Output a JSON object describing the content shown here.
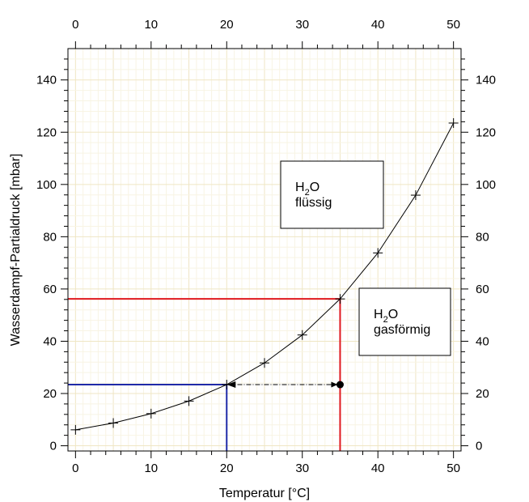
{
  "chart_data": {
    "type": "line",
    "xlabel": "Temperatur [°C]",
    "ylabel": "Wasserdampf-Partialdruck [mbar]",
    "xlim": [
      -1,
      51
    ],
    "ylim": [
      -2,
      152
    ],
    "x_ticks": [
      0,
      10,
      20,
      30,
      40,
      50
    ],
    "y_ticks": [
      0,
      20,
      40,
      60,
      80,
      100,
      120,
      140
    ],
    "grid": true,
    "series": [
      {
        "x": [
          0,
          5,
          10,
          15,
          20,
          25,
          30,
          35,
          40,
          45,
          50
        ],
        "values": [
          6.1,
          8.7,
          12.3,
          17.1,
          23.4,
          31.7,
          42.4,
          56.2,
          73.8,
          95.9,
          123.5
        ],
        "color": "#000000",
        "marker": "plus"
      }
    ],
    "annotations": {
      "liquid_box": {
        "main": "H",
        "sub": "2",
        "rest": "O",
        "line2": "flüssig"
      },
      "gas_box": {
        "main": "H",
        "sub": "2",
        "rest": "O",
        "line2": "gasförmig"
      }
    },
    "reference_lines": {
      "red": {
        "x": 35,
        "y": 56.2,
        "color": "#e0191f"
      },
      "blue": {
        "x": 20,
        "y": 23.4,
        "color": "#1f2aa8"
      },
      "arrow": {
        "from_x": 35,
        "to_x": 20,
        "y": 23.4,
        "color": "#000000"
      }
    }
  }
}
